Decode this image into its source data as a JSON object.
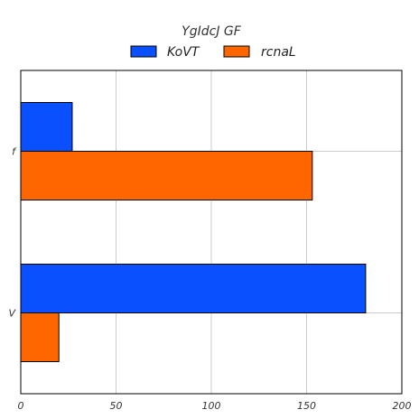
{
  "chart_data": {
    "type": "bar",
    "orientation": "horizontal",
    "title": "YgIdcJ GF",
    "xlabel": "",
    "ylabel": "",
    "categories": [
      "f",
      "V"
    ],
    "series": [
      {
        "name": "KoVT",
        "values": [
          27,
          181
        ],
        "color": "#0a50ff"
      },
      {
        "name": "rcnaL",
        "values": [
          153,
          20
        ],
        "color": "#ff6600"
      }
    ],
    "xlim": [
      0,
      200
    ],
    "xticks": [
      0,
      50,
      100,
      150,
      200
    ],
    "grid": true,
    "legend_position": "top-center"
  }
}
